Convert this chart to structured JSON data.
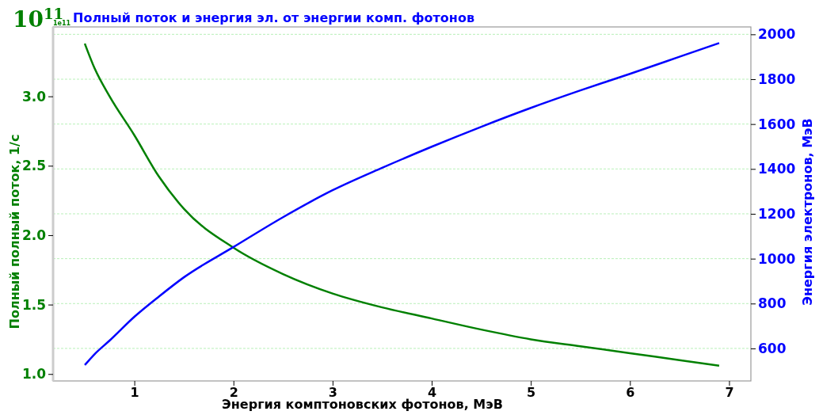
{
  "chart_data": {
    "type": "line",
    "title": "Полный поток и энергия эл. от энергии комп. фотонов",
    "xlabel": "Энергия комптоновских фотонов, МэВ",
    "ylabel": "Полный полный поток, 1/с",
    "y2label": "Энергия электронов, МэВ",
    "annotations": [
      "10$^{11}$",
      "1e11"
    ],
    "x": [
      0.5,
      0.6,
      0.75,
      1,
      1.25,
      1.5,
      2,
      2.5,
      3,
      3.5,
      4,
      4.5,
      5,
      5.5,
      6,
      6.5,
      6.9
    ],
    "series": [
      {
        "color": "#008000",
        "values": [
          3.38,
          3.2,
          3.0,
          2.72,
          2.42,
          2.19,
          1.91,
          1.72,
          1.58,
          1.48,
          1.4,
          1.32,
          1.25,
          1.2,
          1.15,
          1.1,
          1.06
        ]
      },
      {
        "color": "#0000ff",
        "axis": "y2",
        "values": [
          526,
          575,
          635,
          741,
          832,
          917,
          1052,
          1185,
          1305,
          1405,
          1499,
          1588,
          1672,
          1750,
          1824,
          1900,
          1961
        ]
      }
    ],
    "xlim": [
      0.18,
      7.22
    ],
    "xticks": [
      1,
      2,
      3,
      4,
      5,
      6,
      7
    ],
    "ylim": [
      0.95,
      3.5
    ],
    "yticks": [
      {
        "value": 1,
        "label": "1.0"
      },
      {
        "value": 1.5,
        "label": "1.5"
      },
      {
        "value": 2,
        "label": "2.0"
      },
      {
        "value": 2.5,
        "label": "2.5"
      },
      {
        "value": 3,
        "label": "3.0"
      }
    ],
    "y2lim": [
      455,
      2033
    ],
    "y2ticks": [
      600,
      800,
      1000,
      1200,
      1400,
      1600,
      1800,
      2000
    ],
    "grid": "y2",
    "line_style": "solid",
    "marker": "none"
  }
}
